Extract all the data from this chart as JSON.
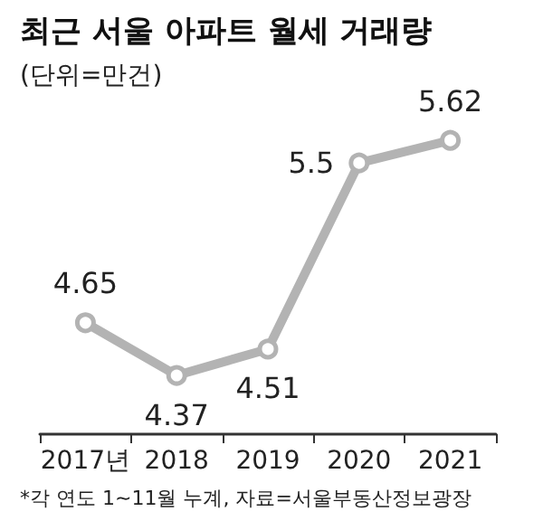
{
  "chart_data": {
    "type": "line",
    "title": "최근 서울 아파트 월세 거래량",
    "subtitle": "(단위=만건)",
    "categories": [
      "2017년",
      "2018",
      "2019",
      "2020",
      "2021"
    ],
    "values": [
      4.65,
      4.37,
      4.51,
      5.5,
      5.62
    ],
    "color": "#b3b3b3",
    "data_labels": true,
    "marker": "circle",
    "annotations": [
      "*각 연도 1~11월 누계, 자료=서울부동산정보광장"
    ]
  }
}
